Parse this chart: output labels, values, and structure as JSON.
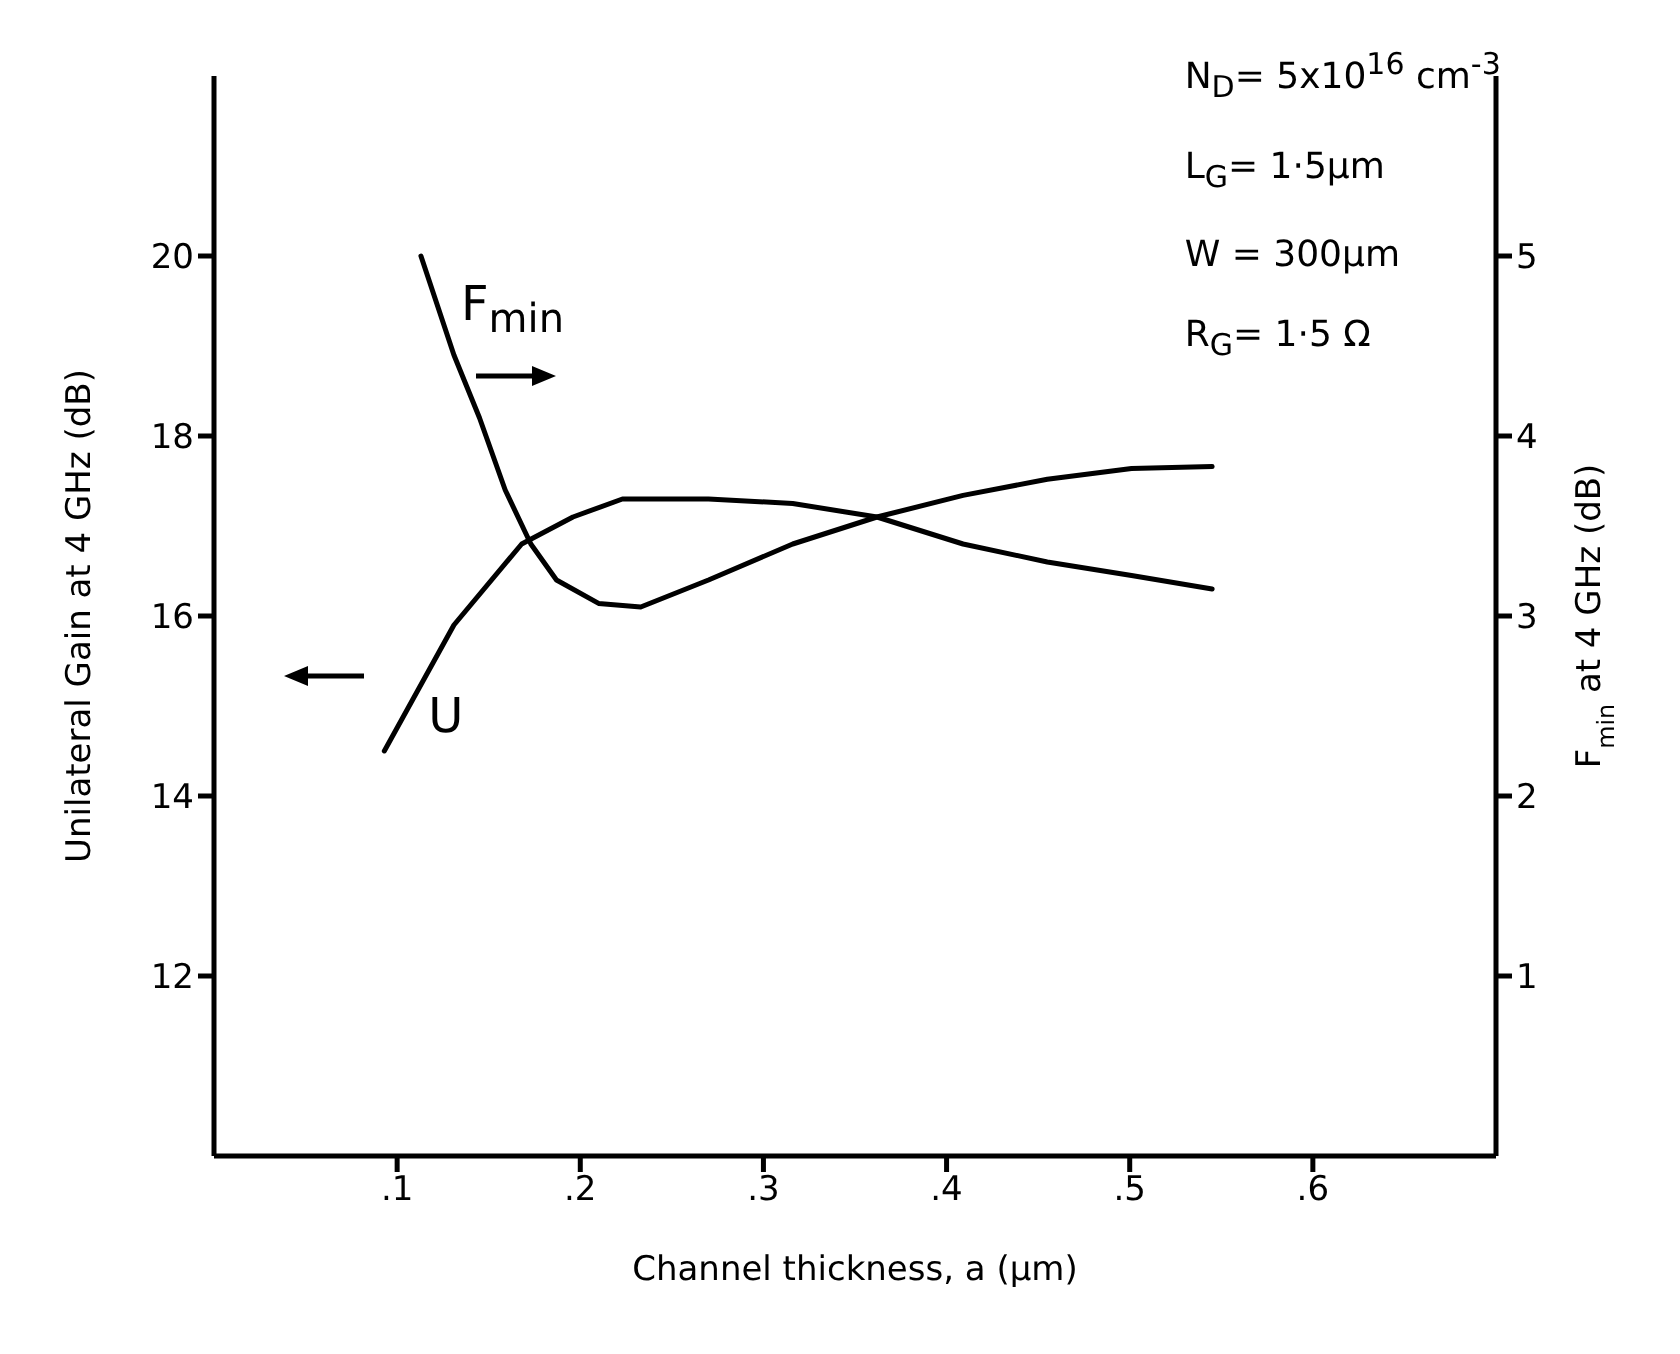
{
  "chart_data": {
    "type": "line",
    "xlabel": "Channel thickness, a (μm)",
    "ylabel": "Unilateral Gain at 4 GHz (dB)",
    "y2label": "F$_{min}$ at 4 GHz (dB)",
    "annotations": [
      "N$_{D}$= 5x10$^{16}$ cm$^{-3}$",
      "L$_{G}$= 1·5μm",
      "W = 300μm",
      "R$_{G}$= 1·5 Ω"
    ],
    "xlim": [
      0,
      0.7
    ],
    "xticks": [
      {
        "value": 0.1,
        "label": ".1"
      },
      {
        "value": 0.2,
        "label": ".2"
      },
      {
        "value": 0.3,
        "label": ".3"
      },
      {
        "value": 0.4,
        "label": ".4"
      },
      {
        "value": 0.5,
        "label": ".5"
      },
      {
        "value": 0.6,
        "label": ".6"
      }
    ],
    "ylim": [
      10,
      22
    ],
    "yticks": [
      12,
      14,
      16,
      18,
      20
    ],
    "y2lim": [
      0,
      6
    ],
    "y2ticks": [
      1,
      2,
      3,
      4,
      5
    ],
    "grid": false,
    "legend": false,
    "marker": "none",
    "line_style": "solid",
    "series": [
      {
        "name": "U",
        "color": "#000000",
        "x": [
          0.093,
          0.131,
          0.168,
          0.196,
          0.223,
          0.27,
          0.316,
          0.362,
          0.409,
          0.455,
          0.501,
          0.545
        ],
        "values": [
          14.5,
          15.9,
          16.8,
          17.1,
          17.3,
          17.3,
          17.25,
          17.1,
          16.8,
          16.6,
          16.45,
          16.3
        ]
      },
      {
        "name": "F$_{min}$",
        "color": "#000000",
        "axis": "y2",
        "x": [
          0.113,
          0.131,
          0.145,
          0.159,
          0.173,
          0.187,
          0.21,
          0.233,
          0.27,
          0.316,
          0.362,
          0.409,
          0.455,
          0.501,
          0.545
        ],
        "values": [
          5.0,
          4.45,
          4.1,
          3.7,
          3.4,
          3.2,
          3.07,
          3.05,
          3.2,
          3.4,
          3.55,
          3.67,
          3.76,
          3.82,
          3.83
        ]
      }
    ]
  }
}
